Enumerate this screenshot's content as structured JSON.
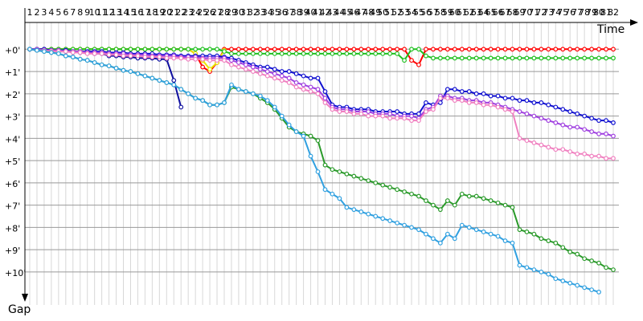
{
  "chart_data": {
    "type": "line",
    "x_label": "Time",
    "y_label": "Gap",
    "x": [
      1,
      2,
      3,
      4,
      5,
      6,
      7,
      8,
      9,
      10,
      11,
      12,
      13,
      14,
      15,
      16,
      17,
      18,
      19,
      20,
      21,
      22,
      23,
      24,
      25,
      26,
      27,
      28,
      29,
      30,
      31,
      32,
      33,
      34,
      35,
      36,
      37,
      38,
      39,
      40,
      41,
      42,
      43,
      44,
      45,
      46,
      47,
      48,
      49,
      50,
      51,
      52,
      53,
      54,
      55,
      56,
      57,
      58,
      59,
      60,
      61,
      62,
      63,
      64,
      65,
      66,
      67,
      68,
      69,
      70,
      71,
      72,
      73,
      74,
      75,
      76,
      77,
      78,
      79,
      80,
      81,
      82
    ],
    "xlim": [
      1,
      82
    ],
    "ylim": [
      -1.2,
      11.3
    ],
    "inverted_y": true,
    "grid": true,
    "yticks": [
      {
        "value": 0,
        "label": "+0'"
      },
      {
        "value": 1,
        "label": "+1'"
      },
      {
        "value": 2,
        "label": "+2'"
      },
      {
        "value": 3,
        "label": "+3'"
      },
      {
        "value": 4,
        "label": "+4'"
      },
      {
        "value": 5,
        "label": "+5'"
      },
      {
        "value": 6,
        "label": "+6'"
      },
      {
        "value": 7,
        "label": "+7'"
      },
      {
        "value": 8,
        "label": "+8'"
      },
      {
        "value": 9,
        "label": "+9'"
      },
      {
        "value": 10,
        "label": "+10'"
      }
    ],
    "series": [
      {
        "color": "#ff0000",
        "values": [
          0,
          0,
          0,
          0,
          0,
          0,
          0,
          0,
          0,
          0,
          0,
          0,
          0,
          0,
          0,
          0,
          0,
          0,
          0,
          0,
          0,
          0,
          0,
          0.2,
          0.8,
          1.0,
          0.6,
          0,
          0,
          0,
          0,
          0,
          0,
          0,
          0,
          0,
          0,
          0,
          0,
          0,
          0,
          0,
          0,
          0,
          0,
          0,
          0,
          0,
          0,
          0,
          0,
          0,
          0,
          0.5,
          0.7,
          0,
          0,
          0,
          0,
          0,
          0,
          0,
          0,
          0,
          0,
          0,
          0,
          0,
          0,
          0,
          0,
          0,
          0,
          0,
          0,
          0,
          0,
          0,
          0,
          0,
          0,
          0
        ]
      },
      {
        "color": "#e8e800",
        "values": [
          0,
          0,
          0,
          0,
          0,
          0,
          0,
          0,
          0,
          0,
          0,
          0,
          0,
          0,
          0,
          0,
          0,
          0,
          0,
          0,
          0,
          0,
          0,
          0.2,
          0.5,
          0.9,
          0.6,
          0.05,
          null,
          null,
          null,
          null,
          null,
          null,
          null,
          null,
          null,
          null,
          null,
          null,
          null,
          null,
          null,
          null,
          null,
          null,
          null,
          null,
          null,
          null,
          null,
          null,
          null,
          null,
          null,
          null,
          null,
          null,
          null,
          null,
          null,
          null,
          null,
          null,
          null,
          null,
          null,
          null,
          null,
          null,
          null,
          null,
          null,
          null,
          null,
          null,
          null,
          null,
          null,
          null,
          null,
          null
        ]
      },
      {
        "color": "#20c020",
        "values": [
          0,
          0,
          0,
          0,
          0,
          0,
          0,
          0,
          0,
          0,
          0,
          0,
          0,
          0,
          0,
          0,
          0,
          0,
          0,
          0,
          0,
          0,
          0,
          0,
          0,
          0,
          0,
          0.1,
          0.2,
          0.2,
          0.2,
          0.2,
          0.2,
          0.2,
          0.2,
          0.2,
          0.2,
          0.2,
          0.2,
          0.2,
          0.2,
          0.2,
          0.2,
          0.2,
          0.2,
          0.2,
          0.2,
          0.2,
          0.2,
          0.2,
          0.2,
          0.2,
          0.5,
          0,
          0,
          0.3,
          0.4,
          0.4,
          0.4,
          0.4,
          0.4,
          0.4,
          0.4,
          0.4,
          0.4,
          0.4,
          0.4,
          0.4,
          0.4,
          0.4,
          0.4,
          0.4,
          0.4,
          0.4,
          0.4,
          0.4,
          0.4,
          0.4,
          0.4,
          0.4,
          0.4,
          0.4
        ]
      },
      {
        "color": "#1010a0",
        "values": [
          0,
          0,
          0.05,
          0.05,
          0.1,
          0.1,
          0.1,
          0.15,
          0.15,
          0.2,
          0.2,
          0.3,
          0.3,
          0.35,
          0.35,
          0.4,
          0.4,
          0.4,
          0.45,
          0.45,
          1.4,
          2.6,
          null,
          null,
          null,
          null,
          null,
          null,
          null,
          null,
          null,
          null,
          null,
          null,
          null,
          null,
          null,
          null,
          null,
          null,
          null,
          null,
          null,
          null,
          null,
          null,
          null,
          null,
          null,
          null,
          null,
          null,
          null,
          null,
          null,
          null,
          null,
          null,
          null,
          null,
          null,
          null,
          null,
          null,
          null,
          null,
          null,
          null,
          null,
          null,
          null,
          null,
          null,
          null,
          null,
          null,
          null,
          null,
          null,
          null,
          null,
          null
        ]
      },
      {
        "color": "#1010d0",
        "values": [
          0,
          0,
          0,
          0.05,
          0.05,
          0.05,
          0.1,
          0.1,
          0.1,
          0.1,
          0.1,
          0.15,
          0.15,
          0.15,
          0.2,
          0.2,
          0.2,
          0.2,
          0.25,
          0.25,
          0.25,
          0.3,
          0.3,
          0.3,
          0.3,
          0.3,
          0.3,
          0.35,
          0.4,
          0.5,
          0.6,
          0.7,
          0.8,
          0.8,
          0.9,
          1.0,
          1.0,
          1.1,
          1.2,
          1.3,
          1.3,
          1.9,
          2.5,
          2.6,
          2.6,
          2.7,
          2.7,
          2.7,
          2.8,
          2.8,
          2.8,
          2.8,
          2.9,
          2.9,
          2.9,
          2.4,
          2.5,
          2.4,
          1.8,
          1.8,
          1.9,
          1.9,
          2.0,
          2.0,
          2.1,
          2.1,
          2.2,
          2.2,
          2.3,
          2.3,
          2.4,
          2.4,
          2.5,
          2.6,
          2.7,
          2.8,
          2.9,
          3.0,
          3.1,
          3.2,
          3.2,
          3.3
        ]
      },
      {
        "color": "#a040e0",
        "values": [
          0,
          0,
          0.05,
          0.05,
          0.05,
          0.1,
          0.1,
          0.1,
          0.15,
          0.15,
          0.15,
          0.2,
          0.2,
          0.2,
          0.25,
          0.25,
          0.25,
          0.3,
          0.3,
          0.3,
          0.3,
          0.35,
          0.35,
          0.35,
          0.4,
          0.4,
          0.4,
          0.4,
          0.5,
          0.6,
          0.7,
          0.8,
          0.9,
          1.0,
          1.1,
          1.2,
          1.3,
          1.5,
          1.6,
          1.7,
          1.8,
          2.2,
          2.6,
          2.7,
          2.7,
          2.8,
          2.8,
          2.8,
          2.9,
          2.9,
          2.9,
          3.0,
          3.0,
          3.0,
          3.1,
          2.7,
          2.6,
          2.1,
          2.1,
          2.2,
          2.2,
          2.3,
          2.3,
          2.4,
          2.4,
          2.5,
          2.6,
          2.7,
          2.8,
          2.9,
          3.0,
          3.1,
          3.2,
          3.3,
          3.4,
          3.5,
          3.5,
          3.6,
          3.7,
          3.8,
          3.8,
          3.9
        ]
      },
      {
        "color": "#f080c0",
        "values": [
          0,
          0.05,
          0.05,
          0.1,
          0.1,
          0.1,
          0.15,
          0.15,
          0.2,
          0.2,
          0.2,
          0.25,
          0.25,
          0.3,
          0.3,
          0.3,
          0.35,
          0.35,
          0.35,
          0.4,
          0.4,
          0.4,
          0.45,
          0.45,
          0.45,
          0.5,
          0.5,
          0.5,
          0.7,
          0.8,
          0.9,
          1.0,
          1.1,
          1.2,
          1.3,
          1.4,
          1.5,
          1.7,
          1.8,
          1.9,
          2.0,
          2.4,
          2.7,
          2.8,
          2.8,
          2.9,
          2.9,
          3.0,
          3.0,
          3.0,
          3.1,
          3.1,
          3.1,
          3.2,
          3.2,
          2.8,
          2.7,
          2.2,
          2.2,
          2.3,
          2.3,
          2.4,
          2.4,
          2.5,
          2.5,
          2.6,
          2.7,
          2.8,
          4.0,
          4.1,
          4.2,
          4.3,
          4.4,
          4.5,
          4.5,
          4.6,
          4.7,
          4.7,
          4.8,
          4.8,
          4.9,
          4.9
        ]
      },
      {
        "color": "#2a9a2a",
        "values": [
          0,
          0.05,
          0.1,
          0.15,
          0.2,
          0.3,
          0.35,
          0.45,
          0.5,
          0.6,
          0.7,
          0.75,
          0.85,
          0.95,
          1.0,
          1.1,
          1.2,
          1.3,
          1.4,
          1.5,
          1.6,
          1.8,
          2.0,
          2.2,
          2.3,
          2.5,
          2.5,
          2.4,
          1.7,
          1.8,
          1.9,
          2.0,
          2.2,
          2.4,
          2.7,
          3.1,
          3.5,
          3.7,
          3.8,
          3.9,
          4.1,
          5.2,
          5.4,
          5.5,
          5.6,
          5.7,
          5.8,
          5.9,
          6.0,
          6.1,
          6.2,
          6.3,
          6.4,
          6.5,
          6.6,
          6.8,
          7.0,
          7.2,
          6.8,
          7.0,
          6.5,
          6.6,
          6.6,
          6.7,
          6.8,
          6.9,
          7.0,
          7.1,
          8.1,
          8.2,
          8.3,
          8.5,
          8.6,
          8.7,
          8.9,
          9.1,
          9.2,
          9.4,
          9.5,
          9.6,
          9.8,
          9.9
        ]
      },
      {
        "color": "#30a0e0",
        "values": [
          0,
          0.05,
          0.1,
          0.15,
          0.2,
          0.3,
          0.35,
          0.45,
          0.5,
          0.6,
          0.7,
          0.75,
          0.85,
          0.95,
          1.0,
          1.1,
          1.2,
          1.3,
          1.4,
          1.5,
          1.6,
          1.8,
          2.0,
          2.2,
          2.3,
          2.5,
          2.5,
          2.4,
          1.6,
          1.8,
          1.9,
          2.0,
          2.1,
          2.3,
          2.6,
          3.0,
          3.4,
          3.7,
          3.9,
          4.8,
          5.5,
          6.3,
          6.5,
          6.7,
          7.1,
          7.2,
          7.3,
          7.4,
          7.5,
          7.6,
          7.7,
          7.8,
          7.9,
          8.0,
          8.1,
          8.3,
          8.5,
          8.7,
          8.3,
          8.5,
          7.9,
          8.0,
          8.1,
          8.2,
          8.3,
          8.4,
          8.6,
          8.7,
          9.7,
          9.8,
          9.9,
          10.0,
          10.1,
          10.3,
          10.4,
          10.5,
          10.6,
          10.7,
          10.8,
          10.9,
          null,
          null
        ]
      }
    ]
  }
}
